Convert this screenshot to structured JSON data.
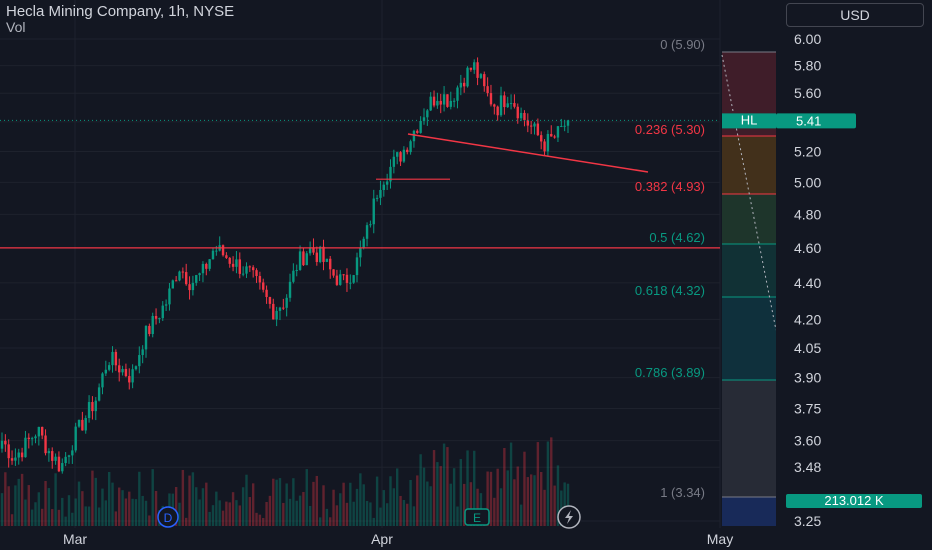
{
  "header": {
    "title": "Hecla Mining Company, 1h, NYSE",
    "volume_label": "Vol",
    "currency": "USD"
  },
  "price_axis": {
    "ticks": [
      "6.00",
      "5.80",
      "5.60",
      "5.40",
      "5.20",
      "5.00",
      "4.80",
      "4.60",
      "4.40",
      "4.20",
      "4.05",
      "3.90",
      "3.75",
      "3.60",
      "3.48",
      "3.25"
    ],
    "tick_values": [
      6.0,
      5.8,
      5.6,
      5.4,
      5.2,
      5.0,
      4.8,
      4.6,
      4.4,
      4.2,
      4.05,
      3.9,
      3.75,
      3.6,
      3.48,
      3.25
    ],
    "scale": "log"
  },
  "time_axis": {
    "labels": [
      "Mar",
      "Apr",
      "May"
    ]
  },
  "last_price": {
    "symbol": "HL",
    "value": "5.41",
    "volume": "213.012 K",
    "color": "#089981"
  },
  "fibonacci": [
    {
      "label": "0 (5.90)",
      "value": 5.9,
      "color": "#787b86",
      "fill": "#f2364533"
    },
    {
      "label": "0.236 (5.30)",
      "value": 5.3,
      "color": "#f23645",
      "fill": "#ff980033"
    },
    {
      "label": "0.382 (4.93)",
      "value": 4.93,
      "color": "#f23645",
      "fill": "#4caf5033"
    },
    {
      "label": "0.5 (4.62)",
      "value": 4.62,
      "color": "#089981",
      "fill": "#08998133"
    },
    {
      "label": "0.618 (4.32)",
      "value": 4.32,
      "color": "#089981",
      "fill": "#0097a733"
    },
    {
      "label": "0.786 (3.89)",
      "value": 3.89,
      "color": "#089981",
      "fill": "#787b8633"
    },
    {
      "label": "1 (3.34)",
      "value": 3.34,
      "color": "#787b86",
      "fill": "#2962ff40"
    }
  ],
  "markers": {
    "dividend": "D",
    "earnings": "E",
    "flash_icon": "lightning-icon"
  },
  "colors": {
    "up": "#089981",
    "down": "#f23645",
    "level_line": "#f23645",
    "grid": "#1e222d"
  },
  "chart_data": {
    "type": "candlestick",
    "title": "Hecla Mining Company, 1h, NYSE",
    "y_scale": "log",
    "ylim": [
      3.22,
      6.05
    ],
    "x_labels": [
      "Mar",
      "Apr",
      "May"
    ],
    "close_path": [
      3.6,
      3.52,
      3.58,
      3.65,
      3.55,
      3.48,
      3.6,
      3.7,
      3.8,
      4.0,
      3.95,
      3.9,
      4.1,
      4.2,
      4.3,
      4.5,
      4.4,
      4.45,
      4.6,
      4.55,
      4.5,
      4.45,
      4.35,
      4.25,
      4.3,
      4.5,
      4.6,
      4.55,
      4.45,
      4.4,
      4.5,
      4.7,
      5.0,
      5.1,
      5.2,
      5.35,
      5.5,
      5.6,
      5.55,
      5.7,
      5.8,
      5.6,
      5.5,
      5.6,
      5.45,
      5.35,
      5.25,
      5.3,
      5.41
    ],
    "last": 5.41,
    "horizontal_level": 4.6,
    "recent_resistance": 5.02
  }
}
